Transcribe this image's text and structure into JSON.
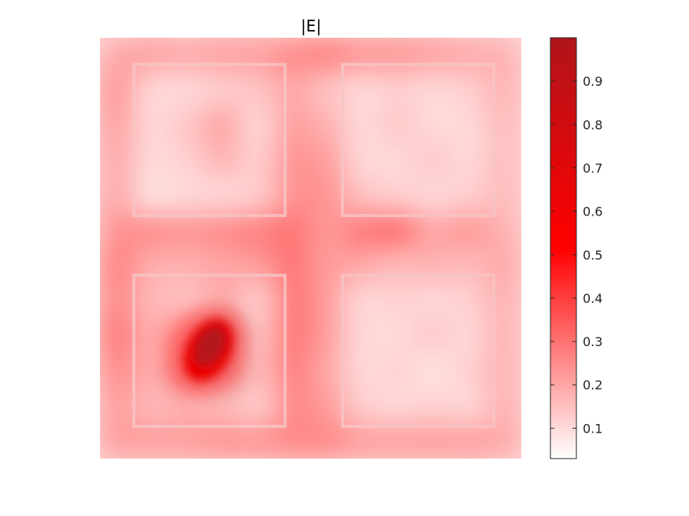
{
  "chart_data": {
    "type": "heatmap",
    "title": "|E|",
    "xlabel": "",
    "ylabel": "",
    "colormap": [
      "#ffffff",
      "#ff0000",
      "#b0141a"
    ],
    "colorbar": {
      "range": [
        0.03,
        1.0
      ],
      "ticks": [
        0.1,
        0.2,
        0.3,
        0.4,
        0.5,
        0.6,
        0.7,
        0.8,
        0.9
      ],
      "tick_labels": [
        "0.1",
        "0.2",
        "0.3",
        "0.4",
        "0.5",
        "0.6",
        "0.7",
        "0.8",
        "0.9"
      ],
      "placement": "right"
    },
    "axes_visible": false,
    "grid": false,
    "description_grid_rows": 12,
    "description_grid_cols": 12,
    "values": [
      [
        0.2,
        0.22,
        0.2,
        0.22,
        0.22,
        0.26,
        0.28,
        0.24,
        0.24,
        0.22,
        0.2,
        0.18
      ],
      [
        0.24,
        0.1,
        0.1,
        0.12,
        0.14,
        0.2,
        0.14,
        0.1,
        0.12,
        0.1,
        0.12,
        0.18
      ],
      [
        0.22,
        0.1,
        0.14,
        0.22,
        0.1,
        0.22,
        0.18,
        0.1,
        0.14,
        0.1,
        0.1,
        0.16
      ],
      [
        0.2,
        0.1,
        0.12,
        0.18,
        0.12,
        0.24,
        0.22,
        0.1,
        0.1,
        0.14,
        0.1,
        0.16
      ],
      [
        0.2,
        0.08,
        0.1,
        0.1,
        0.12,
        0.24,
        0.24,
        0.14,
        0.12,
        0.1,
        0.12,
        0.16
      ],
      [
        0.24,
        0.26,
        0.24,
        0.26,
        0.28,
        0.3,
        0.22,
        0.3,
        0.34,
        0.2,
        0.24,
        0.18
      ],
      [
        0.28,
        0.18,
        0.18,
        0.2,
        0.22,
        0.3,
        0.22,
        0.2,
        0.16,
        0.18,
        0.16,
        0.2
      ],
      [
        0.26,
        0.16,
        0.14,
        0.2,
        0.12,
        0.3,
        0.22,
        0.1,
        0.12,
        0.1,
        0.12,
        0.18
      ],
      [
        0.3,
        0.18,
        0.4,
        0.9,
        0.14,
        0.3,
        0.22,
        0.1,
        0.1,
        0.14,
        0.1,
        0.18
      ],
      [
        0.26,
        0.18,
        0.6,
        0.7,
        0.16,
        0.28,
        0.2,
        0.1,
        0.12,
        0.08,
        0.12,
        0.18
      ],
      [
        0.22,
        0.16,
        0.18,
        0.16,
        0.12,
        0.26,
        0.22,
        0.12,
        0.1,
        0.12,
        0.1,
        0.18
      ],
      [
        0.22,
        0.22,
        0.22,
        0.24,
        0.24,
        0.26,
        0.26,
        0.22,
        0.22,
        0.22,
        0.22,
        0.2
      ]
    ],
    "hotspot_note": ""
  }
}
